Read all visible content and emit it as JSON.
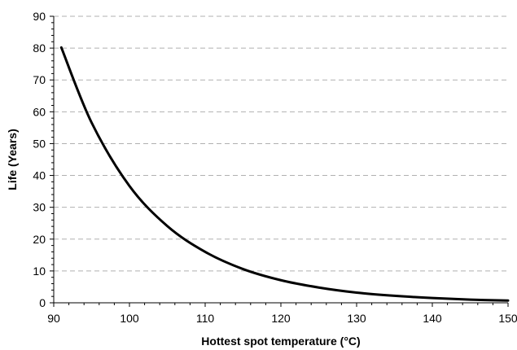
{
  "chart_data": {
    "type": "line",
    "title": "",
    "xlabel": "Hottest spot temperature (°C)",
    "ylabel": "Life (Years)",
    "xlim": [
      90,
      150
    ],
    "ylim": [
      0,
      90
    ],
    "x_ticks": [
      90,
      100,
      110,
      120,
      130,
      140,
      150
    ],
    "y_ticks": [
      0,
      10,
      20,
      30,
      40,
      50,
      60,
      70,
      80,
      90
    ],
    "grid": "horizontal dashed",
    "legend": "none",
    "colors": {
      "line": "#000000",
      "grid": "#b0b0b0",
      "axis": "#000000"
    },
    "series": [
      {
        "x": [
          91,
          95,
          100,
          105,
          110,
          115,
          120,
          125,
          130,
          135,
          140,
          145,
          150
        ],
        "values": [
          80.2,
          56.6,
          36.7,
          24.1,
          16.0,
          10.6,
          7.1,
          4.8,
          3.2,
          2.2,
          1.5,
          1.0,
          0.7
        ]
      }
    ]
  }
}
